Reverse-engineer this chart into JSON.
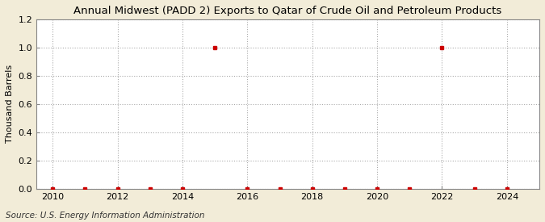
{
  "title": "Annual Midwest (PADD 2) Exports to Qatar of Crude Oil and Petroleum Products",
  "ylabel": "Thousand Barrels",
  "source": "Source: U.S. Energy Information Administration",
  "figure_bg": "#F2ECD8",
  "plot_bg": "#FFFFFF",
  "marker_color": "#CC0000",
  "marker": "s",
  "marker_size": 3,
  "xlim": [
    2009.5,
    2025.0
  ],
  "ylim": [
    0.0,
    1.2
  ],
  "yticks": [
    0.0,
    0.2,
    0.4,
    0.6,
    0.8,
    1.0,
    1.2
  ],
  "xticks": [
    2010,
    2012,
    2014,
    2016,
    2018,
    2020,
    2022,
    2024
  ],
  "grid_color": "#AAAAAA",
  "grid_linestyle": ":",
  "grid_linewidth": 0.8,
  "data": {
    "2010": 0.0,
    "2011": 0.0,
    "2012": 0.0,
    "2013": 0.0,
    "2014": 0.0,
    "2015": 1.0,
    "2016": 0.0,
    "2017": 0.0,
    "2018": 0.0,
    "2019": 0.0,
    "2020": 0.0,
    "2021": 0.0,
    "2022": 1.0,
    "2023": 0.0,
    "2024": 0.0
  },
  "title_fontsize": 9.5,
  "title_fontweight": "normal",
  "axis_label_fontsize": 8,
  "tick_fontsize": 8,
  "source_fontsize": 7.5
}
